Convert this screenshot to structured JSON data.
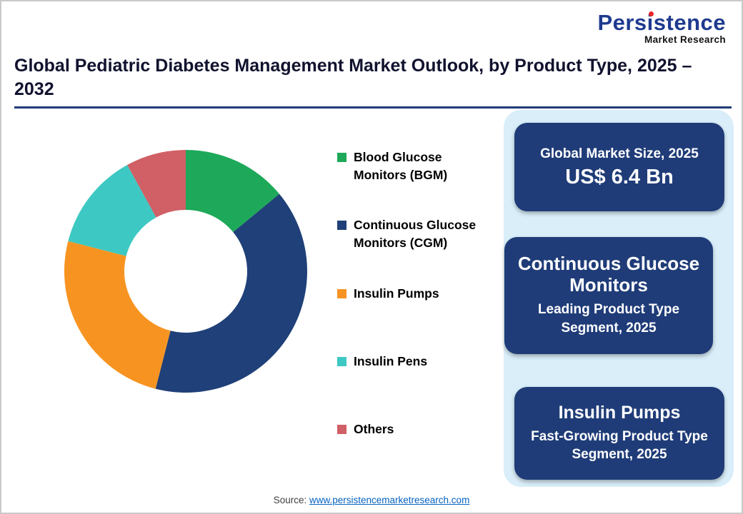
{
  "logo": {
    "name": "Persistence",
    "subtitle": "Market Research",
    "name_color": "#1E3A8F",
    "dot_color": "#E8262A"
  },
  "header": {
    "title": "Global Pediatric Diabetes Management Market Outlook, by Product Type, 2025 – 2032"
  },
  "chart_data": {
    "type": "pie",
    "style": "donut",
    "title": "Global Pediatric Diabetes Management Market Outlook, by Product Type, 2025 – 2032",
    "categories": [
      "Blood Glucose Monitors (BGM)",
      "Continuous Glucose Monitors (CGM)",
      "Insulin Pumps",
      "Insulin Pens",
      "Others"
    ],
    "values": [
      14,
      40,
      25,
      13,
      8
    ],
    "values_note": "percent share estimated from arc angles; no numeric labels shown",
    "colors": [
      "#1DA959",
      "#1F4078",
      "#F79421",
      "#3EC8C3",
      "#D05F66"
    ],
    "legend_position": "right",
    "start_angle_deg": -90,
    "direction": "clockwise"
  },
  "info_panel": {
    "background_color": "#D9EEF9",
    "card_color": "#1F3C78",
    "cards": [
      {
        "line1": "Global Market Size, 2025",
        "line2": "US$ 6.4 Bn"
      },
      {
        "line1": "Continuous Glucose Monitors",
        "line2": "Leading Product Type Segment, 2025"
      },
      {
        "line1": "Insulin Pumps",
        "line2": "Fast-Growing Product Type Segment, 2025"
      }
    ]
  },
  "footer": {
    "source_label": "Source:",
    "source_link_text": "www.persistencemarketresearch.com"
  }
}
